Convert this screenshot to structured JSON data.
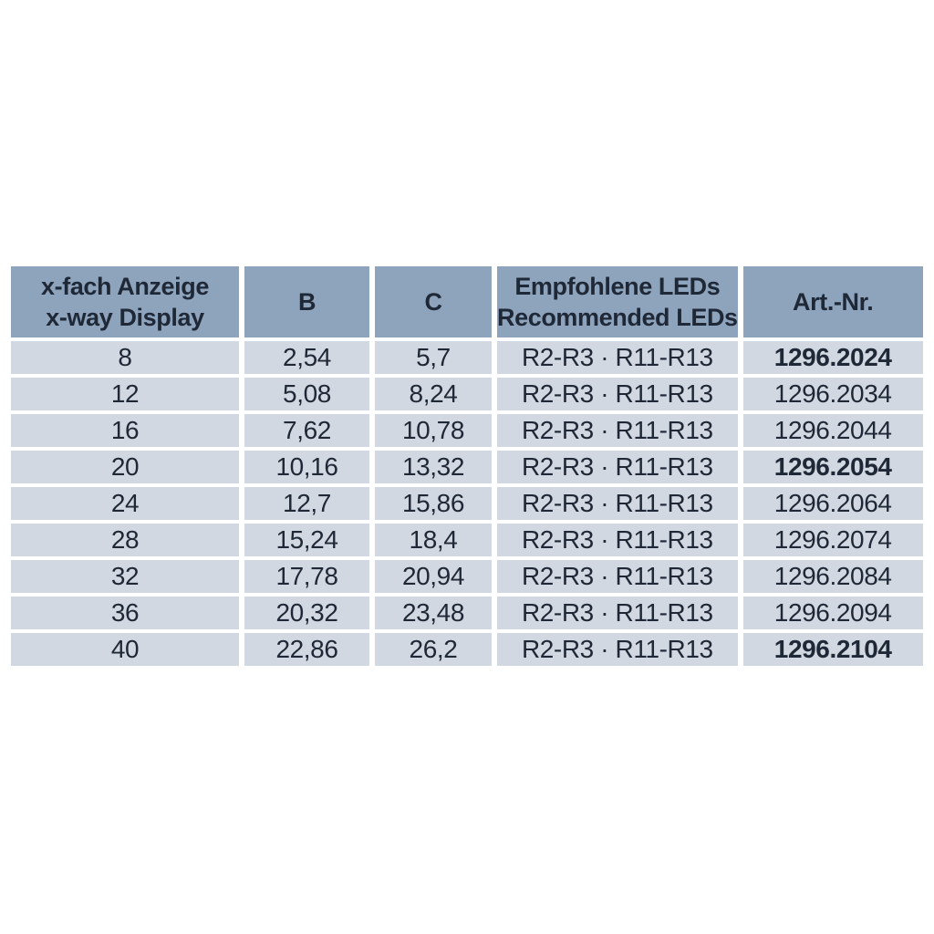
{
  "colors": {
    "header_bg": "#8ea3bc",
    "row_bg": "#d2d8e2",
    "text": "#1f2836",
    "separator": "#ffffff",
    "page_bg": "#ffffff"
  },
  "table": {
    "headers": {
      "display_line1": "x-fach Anzeige",
      "display_line2": "x-way Display",
      "b": "B",
      "c": "C",
      "leds_line1": "Empfohlene LEDs",
      "leds_line2": "Recommended LEDs",
      "art_nr": "Art.-Nr."
    },
    "rows": [
      {
        "display": "8",
        "b": "2,54",
        "c": "5,7",
        "leds": "R2-R3 · R11-R13",
        "art_nr": "1296.2024",
        "art_nr_bold": true
      },
      {
        "display": "12",
        "b": "5,08",
        "c": "8,24",
        "leds": "R2-R3 · R11-R13",
        "art_nr": "1296.2034",
        "art_nr_bold": false
      },
      {
        "display": "16",
        "b": "7,62",
        "c": "10,78",
        "leds": "R2-R3 · R11-R13",
        "art_nr": "1296.2044",
        "art_nr_bold": false
      },
      {
        "display": "20",
        "b": "10,16",
        "c": "13,32",
        "leds": "R2-R3 · R11-R13",
        "art_nr": "1296.2054",
        "art_nr_bold": true
      },
      {
        "display": "24",
        "b": "12,7",
        "c": "15,86",
        "leds": "R2-R3 · R11-R13",
        "art_nr": "1296.2064",
        "art_nr_bold": false
      },
      {
        "display": "28",
        "b": "15,24",
        "c": "18,4",
        "leds": "R2-R3 · R11-R13",
        "art_nr": "1296.2074",
        "art_nr_bold": false
      },
      {
        "display": "32",
        "b": "17,78",
        "c": "20,94",
        "leds": "R2-R3 · R11-R13",
        "art_nr": "1296.2084",
        "art_nr_bold": false
      },
      {
        "display": "36",
        "b": "20,32",
        "c": "23,48",
        "leds": "R2-R3 · R11-R13",
        "art_nr": "1296.2094",
        "art_nr_bold": false
      },
      {
        "display": "40",
        "b": "22,86",
        "c": "26,2",
        "leds": "R2-R3 · R11-R13",
        "art_nr": "1296.2104",
        "art_nr_bold": true
      }
    ]
  }
}
